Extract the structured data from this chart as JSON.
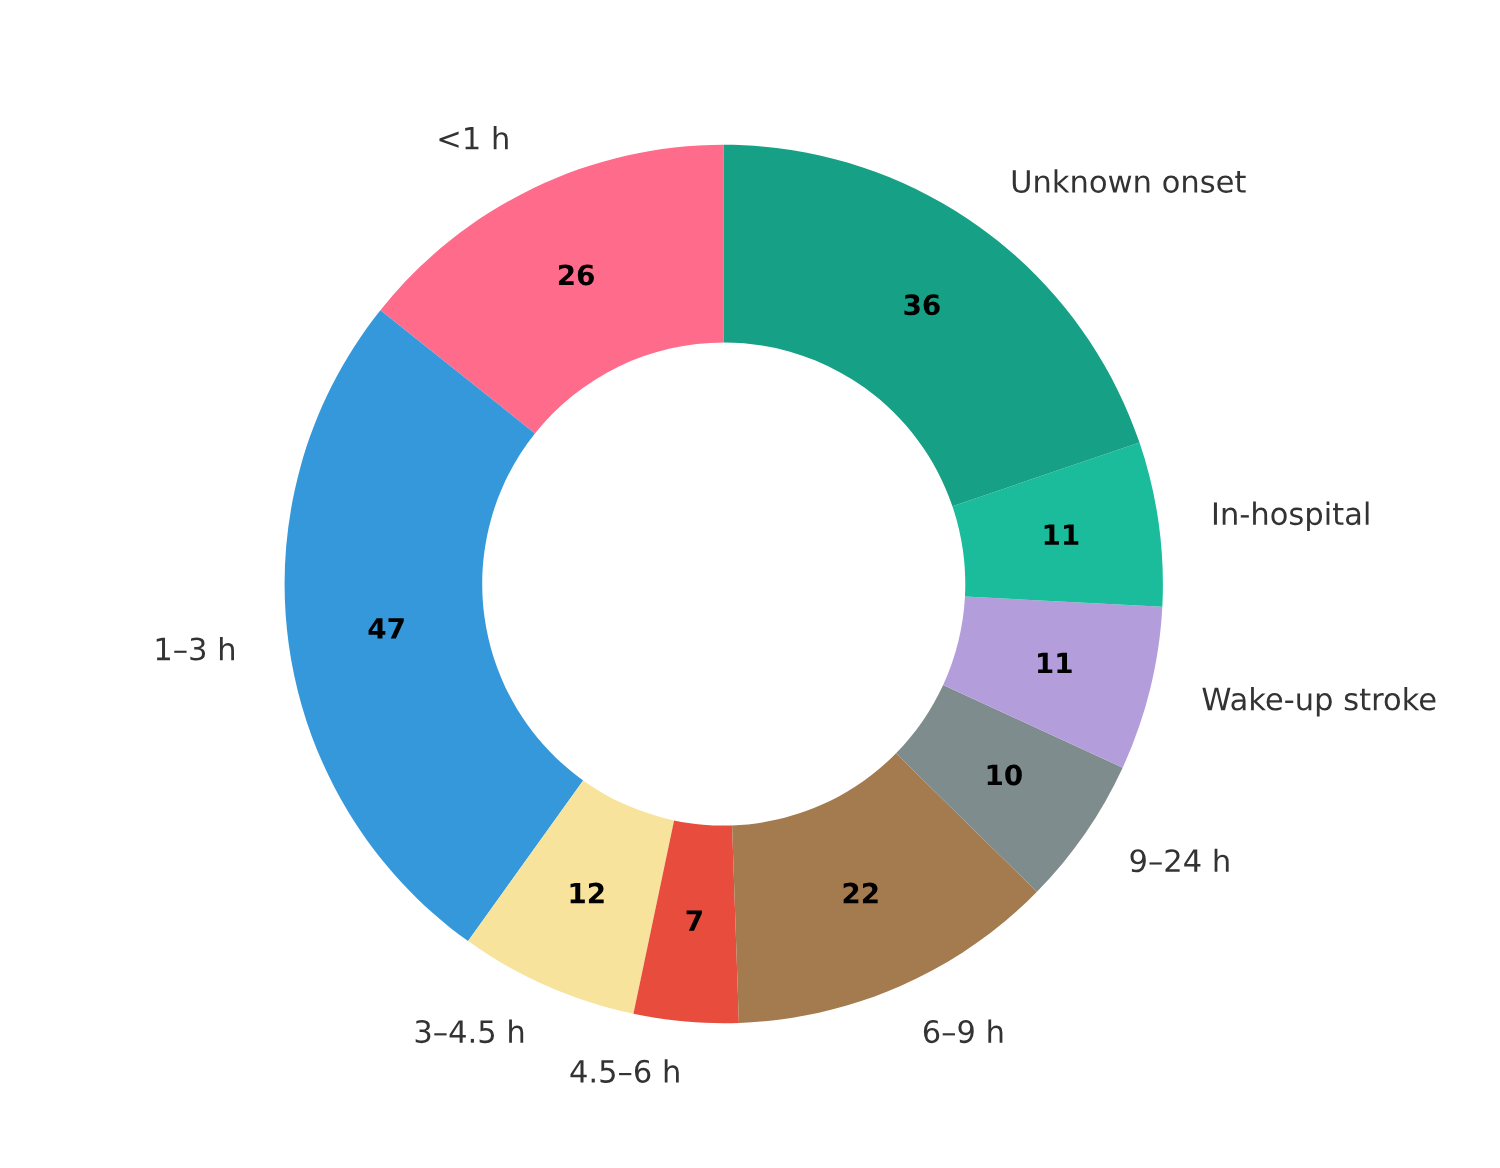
{
  "chart_data": {
    "type": "donut",
    "categories": [
      "<1 h",
      "1–3 h",
      "3–4.5 h",
      "4.5–6 h",
      "6–9 h",
      "9–24 h",
      "Wake-up stroke",
      "In-hospital",
      "Unknown onset"
    ],
    "values": [
      26,
      47,
      12,
      7,
      22,
      10,
      11,
      11,
      36
    ],
    "colors": [
      "#ff6b8b",
      "#3498db",
      "#f7e39c",
      "#e74c3c",
      "#a47a4f",
      "#7f8c8d",
      "#b39ddb",
      "#1abc9c",
      "#16a085"
    ],
    "data_labels": true
  }
}
